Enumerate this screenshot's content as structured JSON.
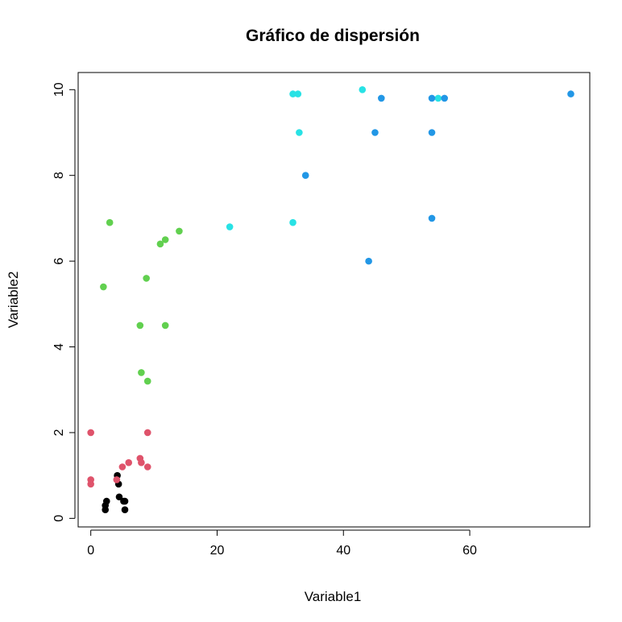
{
  "chart_data": {
    "type": "scatter",
    "title": "Gráfico de dispersión",
    "xlabel": "Variable1",
    "ylabel": "Variable2",
    "xlim": [
      -2,
      79
    ],
    "ylim": [
      -0.2,
      10.4
    ],
    "x_ticks": [
      0,
      20,
      40,
      60
    ],
    "y_ticks": [
      0,
      2,
      4,
      6,
      8,
      10
    ],
    "grid": false,
    "series": [
      {
        "color": "#000000",
        "points": [
          [
            2.3,
            0.2
          ],
          [
            2.3,
            0.3
          ],
          [
            2.5,
            0.4
          ],
          [
            4.2,
            1.0
          ],
          [
            4.4,
            0.8
          ],
          [
            4.5,
            0.5
          ],
          [
            5.2,
            0.4
          ],
          [
            5.4,
            0.4
          ],
          [
            5.4,
            0.2
          ]
        ]
      },
      {
        "color": "#DF536B",
        "points": [
          [
            0,
            2.0
          ],
          [
            0,
            0.9
          ],
          [
            0,
            0.8
          ],
          [
            4.1,
            0.9
          ],
          [
            5.0,
            1.2
          ],
          [
            6.0,
            1.3
          ],
          [
            7.8,
            1.4
          ],
          [
            8.0,
            1.3
          ],
          [
            9.0,
            2.0
          ],
          [
            9.0,
            1.2
          ]
        ]
      },
      {
        "color": "#61D04F",
        "points": [
          [
            2.0,
            5.4
          ],
          [
            3.0,
            6.9
          ],
          [
            7.8,
            4.5
          ],
          [
            8.0,
            3.4
          ],
          [
            8.8,
            5.6
          ],
          [
            9.0,
            3.2
          ],
          [
            11.0,
            6.4
          ],
          [
            11.8,
            6.5
          ],
          [
            11.8,
            4.5
          ],
          [
            14.0,
            6.7
          ]
        ]
      },
      {
        "color": "#28E2E5",
        "points": [
          [
            22.0,
            6.8
          ],
          [
            32.0,
            9.9
          ],
          [
            32.0,
            6.9
          ],
          [
            32.8,
            9.9
          ],
          [
            33.0,
            9.0
          ],
          [
            43.0,
            10.0
          ],
          [
            55.0,
            9.8
          ]
        ]
      },
      {
        "color": "#2297E6",
        "points": [
          [
            34.0,
            8.0
          ],
          [
            44.0,
            6.0
          ],
          [
            45.0,
            9.0
          ],
          [
            46.0,
            9.8
          ],
          [
            54.0,
            9.8
          ],
          [
            54.0,
            9.0
          ],
          [
            54.0,
            7.0
          ],
          [
            56.0,
            9.8
          ],
          [
            76.0,
            9.9
          ]
        ]
      }
    ]
  }
}
